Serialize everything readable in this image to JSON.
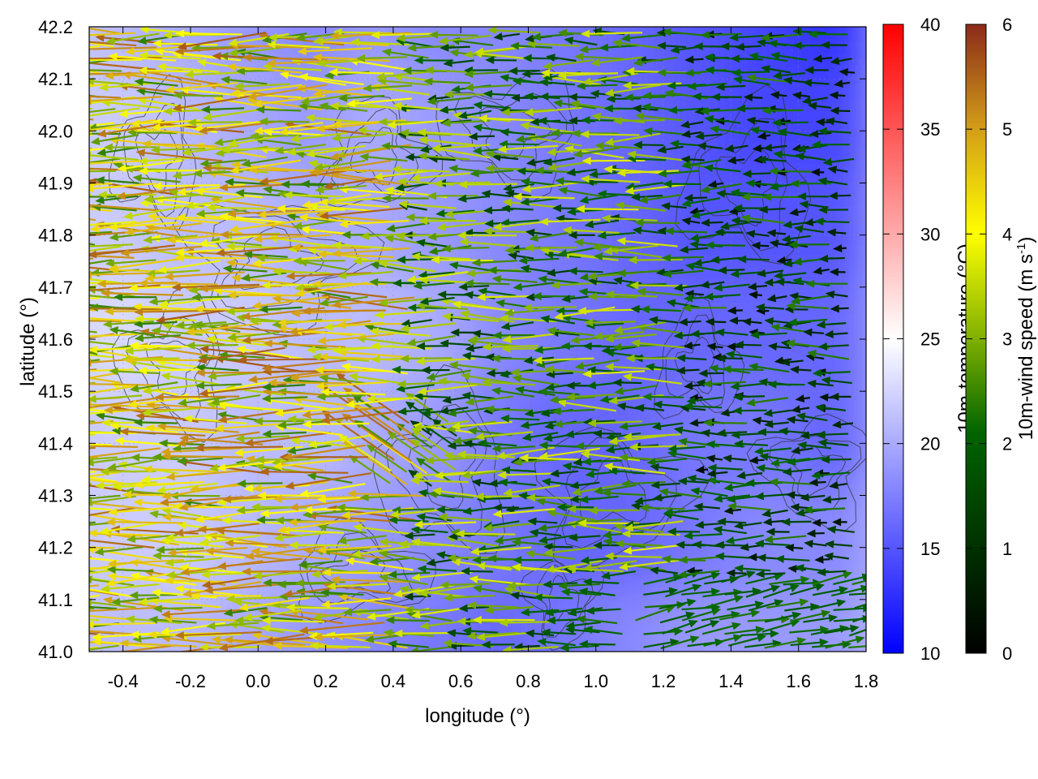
{
  "chart_data": {
    "type": "heatmap",
    "title": "",
    "xlabel": "longitude (°)",
    "ylabel": "latitude (°)",
    "xlim": [
      -0.5,
      1.8
    ],
    "ylim": [
      41.0,
      42.2
    ],
    "xticks": [
      -0.4,
      -0.2,
      0.0,
      0.2,
      0.4,
      0.6,
      0.8,
      1.0,
      1.2,
      1.4,
      1.6,
      1.8
    ],
    "xtick_labels": [
      "-0.4",
      "-0.2",
      "0.0",
      "0.2",
      "0.4",
      "0.6",
      "0.8",
      "1.0",
      "1.2",
      "1.4",
      "1.6",
      "1.8"
    ],
    "yticks": [
      41.0,
      41.1,
      41.2,
      41.3,
      41.4,
      41.5,
      41.6,
      41.7,
      41.8,
      41.9,
      42.0,
      42.1,
      42.2
    ],
    "ytick_labels": [
      "41.0",
      "41.1",
      "41.2",
      "41.3",
      "41.4",
      "41.5",
      "41.6",
      "41.7",
      "41.8",
      "41.9",
      "42.0",
      "42.1",
      "42.2"
    ],
    "grid": true,
    "temperature_colorbar": {
      "label": "10m-temperature (°C)",
      "range": [
        10,
        40
      ],
      "ticks": [
        10,
        15,
        20,
        25,
        30,
        35,
        40
      ],
      "tick_labels": [
        "10",
        "15",
        "20",
        "25",
        "30",
        "35",
        "40"
      ],
      "colors": [
        "#0000ff",
        "#ffffff",
        "#ff0000"
      ]
    },
    "wind_colorbar": {
      "label": "10m-wind speed (m s",
      "label_sup": "-1",
      "label_end": ")",
      "range": [
        0,
        6
      ],
      "ticks": [
        0,
        1,
        2,
        3,
        4,
        5,
        6
      ],
      "tick_labels": [
        "0",
        "1",
        "2",
        "3",
        "4",
        "5",
        "6"
      ],
      "colors": [
        "#000000",
        "#006400",
        "#7fb000",
        "#ffff00",
        "#d4a017",
        "#8b2a1a"
      ]
    },
    "temperature_field": {
      "description_values_degC": [
        [
          21,
          20,
          19,
          18,
          19,
          18,
          18,
          17,
          16,
          15,
          14,
          13
        ],
        [
          22,
          21,
          20,
          19,
          20,
          19,
          18,
          17,
          16,
          15,
          14,
          14
        ],
        [
          22,
          21,
          21,
          20,
          20,
          19,
          18,
          17,
          16,
          15,
          15,
          15
        ],
        [
          23,
          22,
          22,
          21,
          21,
          20,
          18,
          17,
          16,
          16,
          16,
          16
        ],
        [
          22,
          22,
          21,
          21,
          20,
          19,
          17,
          16,
          16,
          17,
          17,
          16
        ],
        [
          22,
          22,
          21,
          20,
          19,
          18,
          17,
          16,
          16,
          17,
          18,
          18
        ],
        [
          21,
          21,
          20,
          19,
          18,
          17,
          16,
          17,
          18,
          19,
          19,
          19
        ]
      ],
      "lat_rows": [
        42.2,
        42.0,
        41.8,
        41.6,
        41.4,
        41.2,
        41.0
      ],
      "lon_cols": [
        -0.5,
        -0.3,
        -0.1,
        0.1,
        0.3,
        0.5,
        0.7,
        0.9,
        1.1,
        1.3,
        1.5,
        1.7
      ]
    }
  }
}
